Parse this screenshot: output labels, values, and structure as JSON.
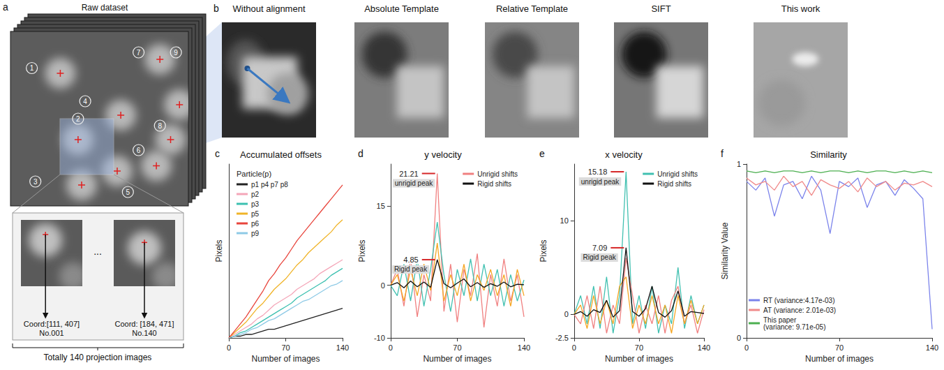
{
  "panel_a": {
    "letter": "a",
    "title": "Raw dataset",
    "particles": [
      "1",
      "2",
      "3",
      "4",
      "5",
      "6",
      "7",
      "8",
      "9"
    ],
    "frames": [
      {
        "coord": "Coord:[111, 407]",
        "number": "No.001"
      },
      {
        "coord": "Coord: [184, 471]",
        "number": "No.140"
      }
    ],
    "ellipsis": "...",
    "caption": "Totally 140 projection images"
  },
  "panel_b": {
    "letter": "b",
    "titles": [
      "Without alignment",
      "Absolute Template",
      "Relative Template",
      "SIFT",
      "This work"
    ]
  },
  "chart_data": [
    {
      "letter": "c",
      "type": "line",
      "title": "Accumulated offsets",
      "x_label": "Number of images",
      "y_label": "Pixels",
      "legend_title": "Particle(p)",
      "legend": "upper left",
      "grid": false,
      "tick_labels": "x",
      "x": [
        0,
        7,
        14,
        21,
        28,
        35,
        42,
        49,
        56,
        63,
        70,
        77,
        84,
        91,
        98,
        105,
        112,
        119,
        126,
        133,
        140
      ],
      "xlim": [
        0,
        140
      ],
      "xticks": [
        0,
        70,
        140
      ],
      "ylim": [
        0,
        100
      ],
      "series": [
        {
          "name": "p1 p4 p7 p8",
          "color": "#222222",
          "values": [
            0,
            1,
            1,
            2,
            2,
            3,
            4,
            5,
            5,
            6,
            7,
            8,
            9,
            10,
            11,
            12,
            13,
            14,
            15,
            16,
            17
          ]
        },
        {
          "name": "p2",
          "color": "#f4a6b8",
          "values": [
            0,
            2,
            4,
            6,
            8,
            11,
            13,
            16,
            19,
            21,
            23,
            25,
            28,
            30,
            32,
            34,
            37,
            39,
            41,
            43,
            45
          ]
        },
        {
          "name": "p3",
          "color": "#3cc0b0",
          "values": [
            0,
            1,
            3,
            4,
            6,
            8,
            10,
            12,
            14,
            16,
            18,
            20,
            23,
            25,
            27,
            29,
            31,
            33,
            36,
            38,
            40
          ]
        },
        {
          "name": "p5",
          "color": "#f0b429",
          "values": [
            0,
            3,
            6,
            9,
            13,
            17,
            20,
            24,
            28,
            31,
            34,
            38,
            42,
            45,
            49,
            52,
            55,
            58,
            61,
            65,
            68
          ]
        },
        {
          "name": "p6",
          "color": "#e8453c",
          "values": [
            0,
            4,
            8,
            12,
            17,
            22,
            27,
            33,
            37,
            42,
            46,
            51,
            56,
            60,
            64,
            68,
            72,
            76,
            80,
            84,
            88
          ]
        },
        {
          "name": "p9",
          "color": "#8ecae6",
          "values": [
            0,
            1,
            2,
            3,
            5,
            6,
            8,
            10,
            11,
            13,
            15,
            17,
            19,
            21,
            22,
            24,
            26,
            28,
            30,
            31,
            33
          ]
        }
      ]
    },
    {
      "letter": "d",
      "type": "line",
      "title": "y velocity",
      "x_label": "Number of images",
      "y_label": "Pixels",
      "legend": "upper right",
      "grid": false,
      "x": [
        0,
        7,
        14,
        21,
        28,
        35,
        42,
        49,
        56,
        63,
        70,
        77,
        84,
        91,
        98,
        105,
        112,
        119,
        126,
        133,
        140
      ],
      "xlim": [
        0,
        140
      ],
      "xticks": [
        0,
        70,
        140
      ],
      "ylim": [
        -10,
        23
      ],
      "yticks": [
        -10,
        0,
        15
      ],
      "series": [
        {
          "name": "Unrigid shifts",
          "color": "#f08080",
          "values": [
            0,
            3,
            -4,
            5,
            -6,
            2,
            -3,
            21.21,
            -5,
            4,
            -7,
            3,
            -2,
            6,
            -8,
            2,
            -4,
            5,
            -3,
            2,
            -6
          ]
        },
        {
          "name": "Unrigid shifts",
          "color": "#40c0b0",
          "values": [
            0,
            -2,
            4,
            -3,
            5,
            -4,
            3,
            12,
            2,
            -5,
            3,
            -2,
            5,
            -3,
            4,
            -2,
            3,
            -4,
            2,
            -3,
            1
          ]
        },
        {
          "name": "Unrigid shifts",
          "color": "#f5a623",
          "values": [
            0,
            2,
            -3,
            3,
            -2,
            4,
            -1,
            8,
            -3,
            2,
            -2,
            4,
            -3,
            2,
            -1,
            3,
            -2,
            2,
            -4,
            3,
            -2
          ]
        },
        {
          "name": "Rigid shifts",
          "color": "#111111",
          "values": [
            0,
            0.5,
            -0.5,
            0.8,
            -0.3,
            0.6,
            -0.4,
            4.85,
            0.3,
            -0.5,
            0.4,
            1.2,
            -0.3,
            0.5,
            -0.4,
            0.3,
            -0.2,
            0.6,
            -0.3,
            0.2,
            0.1
          ]
        }
      ],
      "annotations": [
        {
          "label": "unrigid peak",
          "x": 49,
          "y": 21.21
        },
        {
          "label": "Rigid peak",
          "x": 49,
          "y": 4.85
        }
      ]
    },
    {
      "letter": "e",
      "type": "line",
      "title": "x velocity",
      "x_label": "Number of images",
      "y_label": "Pixels",
      "legend": "upper right",
      "grid": false,
      "x": [
        0,
        7,
        14,
        21,
        28,
        35,
        42,
        49,
        56,
        63,
        70,
        77,
        84,
        91,
        98,
        105,
        112,
        119,
        126,
        133,
        140
      ],
      "xlim": [
        0,
        140
      ],
      "xticks": [
        0,
        70,
        140
      ],
      "ylim": [
        -2.5,
        16
      ],
      "yticks": [
        -2.5,
        0,
        10
      ],
      "series": [
        {
          "name": "Unrigid shifts",
          "color": "#40c0b0",
          "values": [
            0,
            2,
            -1,
            3,
            -1.5,
            4,
            -2,
            2,
            15.18,
            -1,
            2,
            -1.5,
            3,
            -2,
            1,
            -1,
            5,
            -1.5,
            2,
            -1,
            1
          ]
        },
        {
          "name": "Unrigid shifts",
          "color": "#f08080",
          "values": [
            0,
            -1,
            2,
            -1.5,
            3,
            -2,
            1,
            -1,
            6,
            2,
            -2,
            1,
            -1,
            2,
            -2,
            1.5,
            3,
            -1,
            1,
            -2,
            0.5
          ]
        },
        {
          "name": "Unrigid shifts",
          "color": "#f5a623",
          "values": [
            0,
            1,
            -1.5,
            2,
            -1,
            1.5,
            -1,
            3,
            4,
            -1.5,
            1,
            -1,
            2,
            -1,
            1,
            -2,
            2,
            -1,
            1.5,
            -1,
            1
          ]
        },
        {
          "name": "Rigid shifts",
          "color": "#111111",
          "values": [
            0,
            0.3,
            -0.2,
            0.5,
            0.2,
            1.5,
            -0.3,
            0.4,
            7.09,
            0.3,
            -0.2,
            0.6,
            3,
            0.2,
            -0.3,
            0.4,
            2.5,
            -0.2,
            0.3,
            0.2,
            0.1
          ]
        }
      ],
      "annotations": [
        {
          "label": "unrigid peak",
          "x": 56,
          "y": 15.18
        },
        {
          "label": "Rigid peak",
          "x": 56,
          "y": 7.09
        }
      ]
    },
    {
      "letter": "f",
      "type": "line",
      "title": "Similarity",
      "x_label": "Number of images",
      "y_label": "Similarity Value",
      "legend": "lower left",
      "grid": false,
      "x": [
        0,
        7,
        14,
        21,
        28,
        35,
        42,
        49,
        56,
        63,
        70,
        77,
        84,
        91,
        98,
        105,
        112,
        119,
        126,
        133,
        140
      ],
      "xlim": [
        0,
        140
      ],
      "xticks": [
        0,
        70,
        140
      ],
      "ylim": [
        0,
        1
      ],
      "yticks": [
        0,
        1
      ],
      "series": [
        {
          "name": "RT (variance:4.17e-03)",
          "color": "#7b83eb",
          "values": [
            0.9,
            0.85,
            0.92,
            0.7,
            0.88,
            0.9,
            0.8,
            0.93,
            0.85,
            0.6,
            0.9,
            0.87,
            0.92,
            0.75,
            0.88,
            0.9,
            0.82,
            0.91,
            0.86,
            0.8,
            0.05
          ]
        },
        {
          "name": "AT (variance: 2.01e-03)",
          "color": "#f08a8a",
          "values": [
            0.92,
            0.88,
            0.9,
            0.85,
            0.93,
            0.87,
            0.9,
            0.82,
            0.91,
            0.88,
            0.86,
            0.9,
            0.84,
            0.92,
            0.87,
            0.9,
            0.85,
            0.89,
            0.88,
            0.9,
            0.87
          ]
        },
        {
          "name": "This paper (variance: 9.71e-05)",
          "color": "#4caf50",
          "values": [
            0.96,
            0.95,
            0.96,
            0.95,
            0.96,
            0.96,
            0.95,
            0.96,
            0.95,
            0.96,
            0.96,
            0.95,
            0.96,
            0.95,
            0.96,
            0.96,
            0.95,
            0.96,
            0.95,
            0.96,
            0.95
          ]
        }
      ]
    }
  ]
}
